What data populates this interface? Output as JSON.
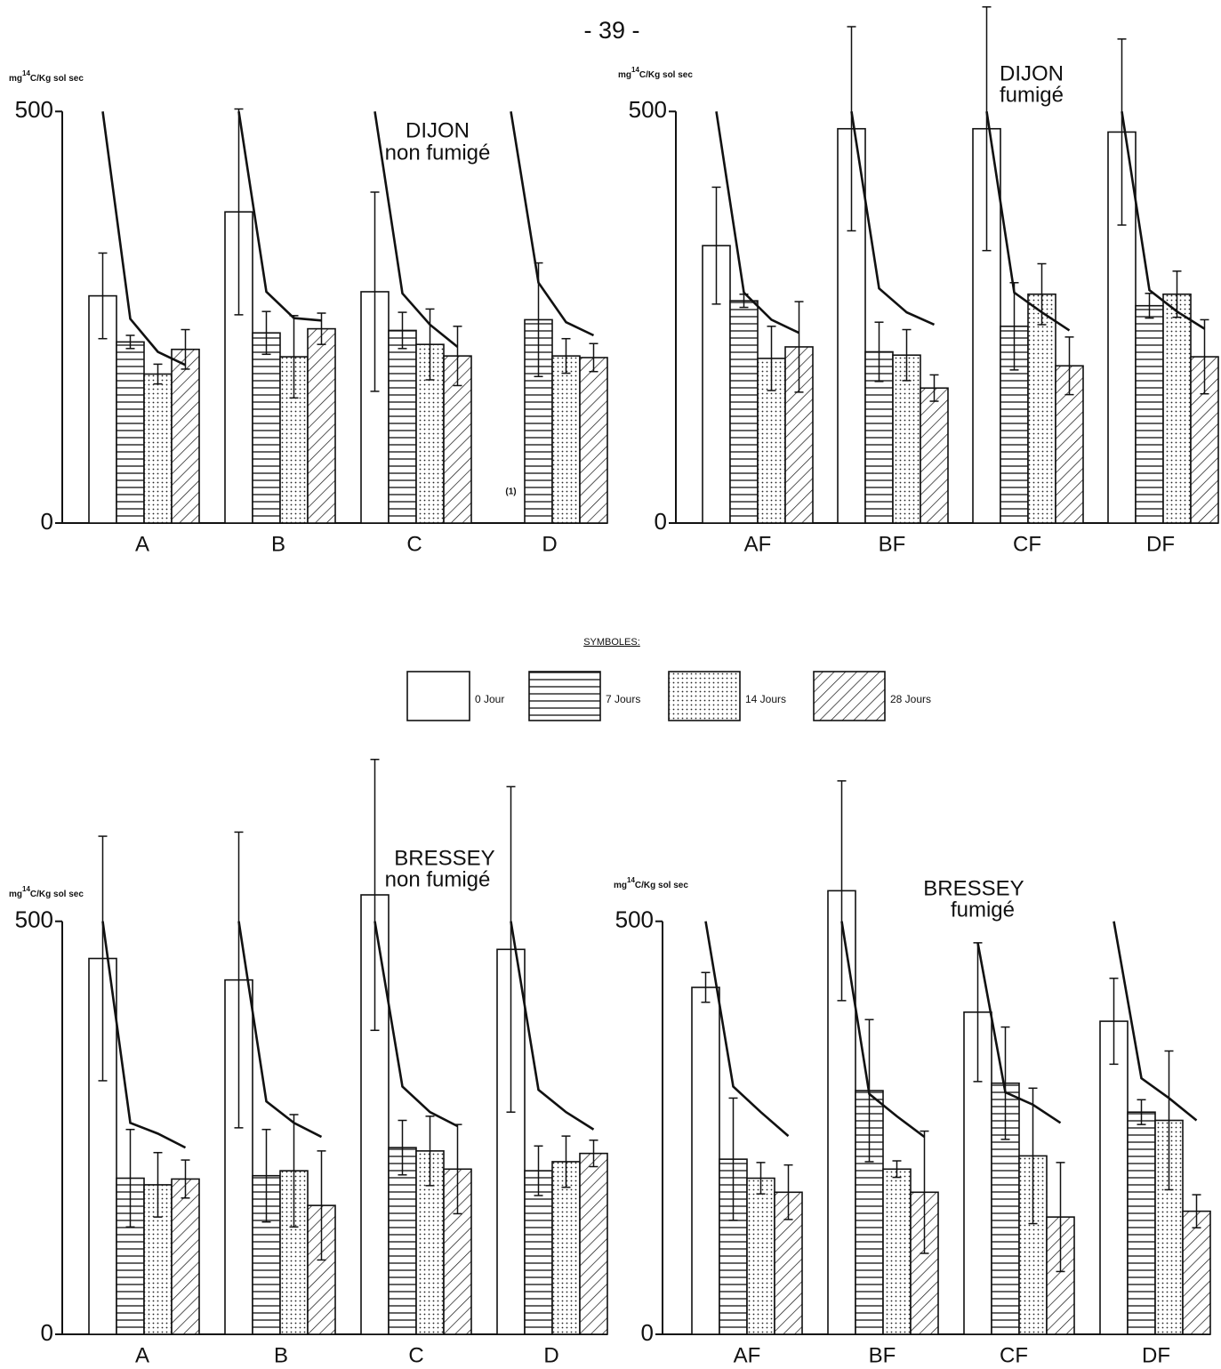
{
  "page_number": "- 39 -",
  "legend": {
    "title": "SYMBOLES:",
    "items": [
      {
        "label": "0 Jour",
        "pattern": "blank"
      },
      {
        "label": "7 Jours",
        "pattern": "hlines"
      },
      {
        "label": "14 Jours",
        "pattern": "dots"
      },
      {
        "label": "28 Jours",
        "pattern": "hatch"
      }
    ]
  },
  "chart_data": [
    {
      "type": "bar",
      "title": [
        "DIJON",
        "non fumigé"
      ],
      "ylabel": {
        "prefix": "mg",
        "sup": "14",
        "suffix": "C/Kg sol sec"
      },
      "note": "(1)",
      "categories": [
        "A",
        "B",
        "C",
        "D"
      ],
      "ylim": [
        0,
        630
      ],
      "yticks": [
        0,
        500
      ],
      "series": [
        {
          "pattern": "blank",
          "values": [
            276,
            378,
            281,
            null
          ],
          "errors": [
            52,
            125,
            121,
            null
          ]
        },
        {
          "pattern": "hlines",
          "values": [
            220,
            231,
            234,
            247
          ],
          "errors": [
            8,
            26,
            22,
            69
          ]
        },
        {
          "pattern": "dots",
          "values": [
            181,
            202,
            217,
            203
          ],
          "errors": [
            12,
            50,
            43,
            21
          ]
        },
        {
          "pattern": "hatch",
          "values": [
            211,
            236,
            203,
            201
          ],
          "errors": [
            24,
            19,
            36,
            17
          ]
        }
      ],
      "curve": [
        [
          500,
          248,
          208,
          192
        ],
        [
          500,
          281,
          249,
          246
        ],
        [
          500,
          279,
          241,
          214
        ],
        [
          500,
          292,
          244,
          228
        ]
      ]
    },
    {
      "type": "bar",
      "title": [
        "DIJON",
        "fumigé"
      ],
      "ylabel": {
        "prefix": "mg",
        "sup": "14",
        "suffix": "C/Kg sol sec"
      },
      "categories": [
        "AF",
        "BF",
        "CF",
        "DF"
      ],
      "ylim": [
        0,
        630
      ],
      "yticks": [
        0,
        500
      ],
      "series": [
        {
          "pattern": "blank",
          "values": [
            337,
            479,
            479,
            475
          ],
          "errors": [
            71,
            124,
            148,
            113
          ]
        },
        {
          "pattern": "hlines",
          "values": [
            270,
            208,
            239,
            264
          ],
          "errors": [
            8,
            36,
            53,
            15
          ]
        },
        {
          "pattern": "dots",
          "values": [
            200,
            204,
            278,
            278
          ],
          "errors": [
            39,
            31,
            37,
            28
          ]
        },
        {
          "pattern": "hatch",
          "values": [
            214,
            164,
            191,
            202
          ],
          "errors": [
            55,
            16,
            35,
            45
          ]
        }
      ],
      "curve": [
        [
          500,
          280,
          247,
          231
        ],
        [
          500,
          285,
          256,
          241
        ],
        [
          500,
          280,
          256,
          234
        ],
        [
          500,
          283,
          257,
          236
        ]
      ]
    },
    {
      "type": "bar",
      "title": [
        "BRESSEY",
        "non fumigé"
      ],
      "ylabel": {
        "prefix": "mg",
        "sup": "14",
        "suffix": "C/Kg sol sec"
      },
      "categories": [
        "A",
        "B",
        "C",
        "D"
      ],
      "ylim": [
        0,
        700
      ],
      "yticks": [
        0,
        500
      ],
      "series": [
        {
          "pattern": "blank",
          "values": [
            455,
            429,
            532,
            466
          ],
          "errors": [
            148,
            179,
            164,
            197
          ]
        },
        {
          "pattern": "hlines",
          "values": [
            189,
            192,
            226,
            198
          ],
          "errors": [
            59,
            56,
            33,
            30
          ]
        },
        {
          "pattern": "dots",
          "values": [
            181,
            198,
            222,
            209
          ],
          "errors": [
            39,
            68,
            42,
            31
          ]
        },
        {
          "pattern": "hatch",
          "values": [
            188,
            156,
            200,
            219
          ],
          "errors": [
            23,
            66,
            54,
            16
          ]
        }
      ],
      "curve": [
        [
          500,
          256,
          243,
          226
        ],
        [
          500,
          282,
          256,
          239
        ],
        [
          500,
          300,
          269,
          252
        ],
        [
          500,
          296,
          269,
          248
        ]
      ]
    },
    {
      "type": "bar",
      "title": [
        "BRESSEY",
        "fumigé"
      ],
      "ylabel": {
        "prefix": "mg",
        "sup": "14",
        "suffix": "C/Kg sol sec"
      },
      "categories": [
        "AF",
        "BF",
        "CF",
        "DF"
      ],
      "ylim": [
        0,
        700
      ],
      "yticks": [
        0,
        500
      ],
      "series": [
        {
          "pattern": "blank",
          "values": [
            420,
            537,
            390,
            379
          ],
          "errors": [
            18,
            133,
            84,
            52
          ]
        },
        {
          "pattern": "hlines",
          "values": [
            212,
            295,
            304,
            269
          ],
          "errors": [
            74,
            86,
            68,
            15
          ]
        },
        {
          "pattern": "dots",
          "values": [
            189,
            200,
            216,
            259
          ],
          "errors": [
            19,
            10,
            82,
            84
          ]
        },
        {
          "pattern": "hatch",
          "values": [
            172,
            172,
            142,
            149
          ],
          "errors": [
            33,
            74,
            66,
            20
          ]
        }
      ],
      "curve": [
        [
          500,
          300,
          269,
          240
        ],
        [
          500,
          291,
          264,
          239
        ],
        [
          474,
          293,
          278,
          256
        ],
        [
          500,
          310,
          286,
          259
        ]
      ]
    }
  ]
}
